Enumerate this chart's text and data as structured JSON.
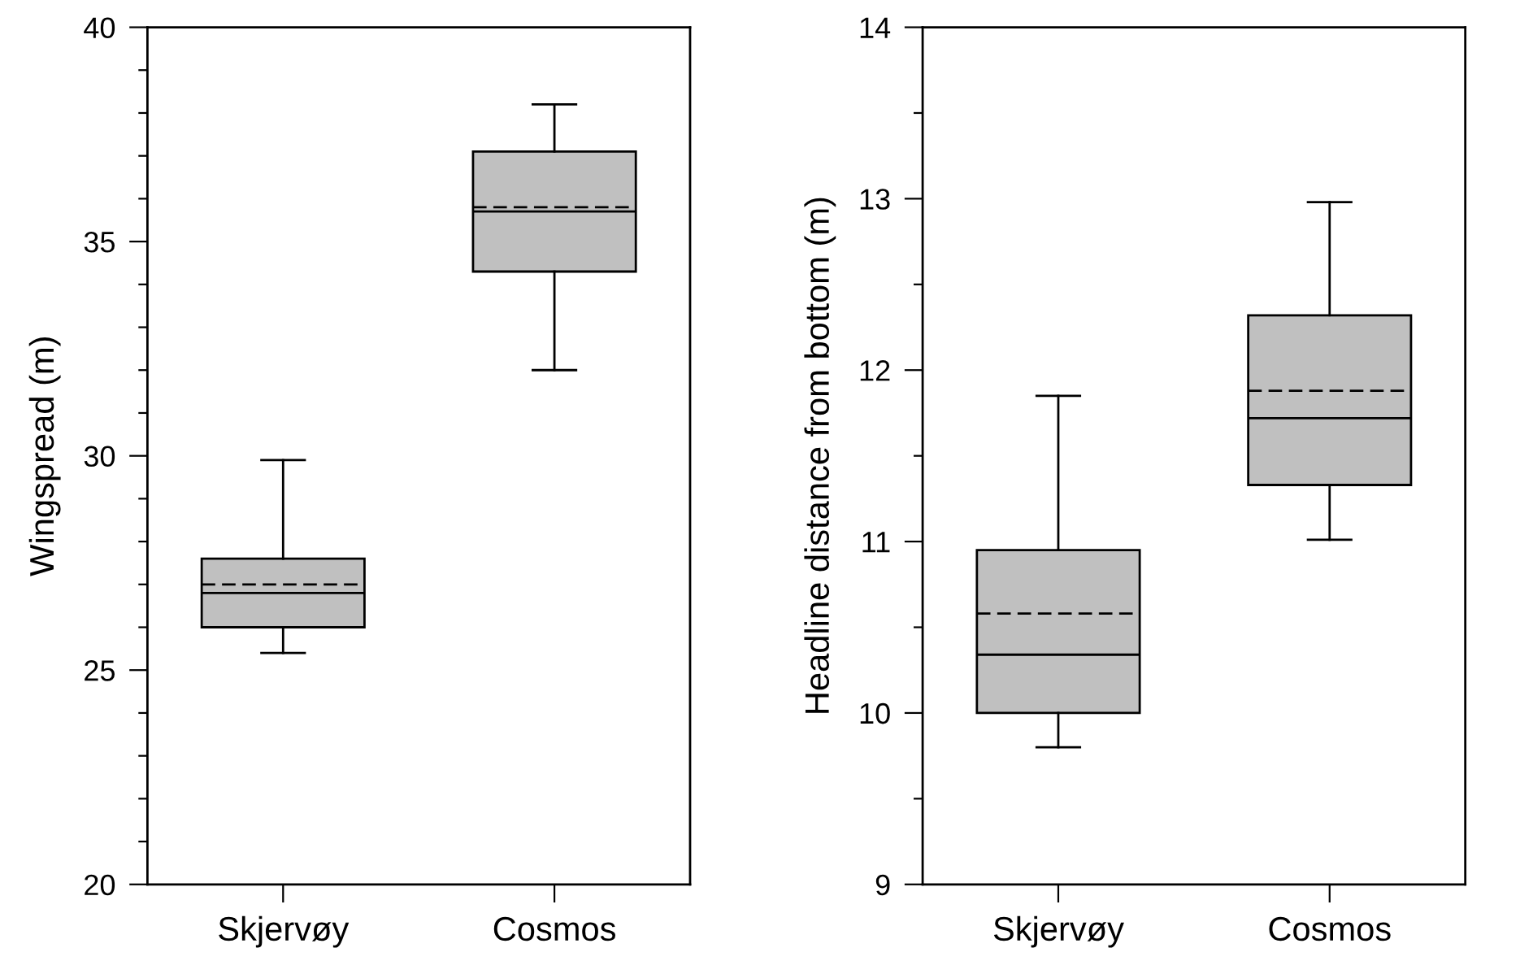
{
  "chart_data": [
    {
      "type": "box",
      "ylabel": "Wingspread (m)",
      "categories": [
        "Skjervøy",
        "Cosmos"
      ],
      "color": "#c0c0c0",
      "ylim": [
        20,
        40
      ],
      "yticks": [
        20,
        {
          "value": 21,
          "label": null
        },
        {
          "value": 22,
          "label": null
        },
        {
          "value": 23,
          "label": null
        },
        {
          "value": 24,
          "label": null
        },
        25,
        {
          "value": 26,
          "label": null
        },
        {
          "value": 27,
          "label": null
        },
        {
          "value": 28,
          "label": null
        },
        {
          "value": 29,
          "label": null
        },
        30,
        {
          "value": 31,
          "label": null
        },
        {
          "value": 32,
          "label": null
        },
        {
          "value": 33,
          "label": null
        },
        {
          "value": 34,
          "label": null
        },
        35,
        {
          "value": 36,
          "label": null
        },
        {
          "value": 37,
          "label": null
        },
        {
          "value": 38,
          "label": null
        },
        {
          "value": 39,
          "label": null
        },
        40
      ],
      "boxes": [
        {
          "low": 25.4,
          "q1": 26.0,
          "median": 26.8,
          "q3": 27.6,
          "high": 29.9,
          "mean": 27.0
        },
        {
          "low": 32.0,
          "q1": 34.3,
          "median": 35.7,
          "q3": 37.1,
          "high": 38.2,
          "mean": 35.8
        }
      ],
      "grid": false
    },
    {
      "type": "box",
      "ylabel": "Headline distance from bottom (m)",
      "categories": [
        "Skjervøy",
        "Cosmos"
      ],
      "color": "#c0c0c0",
      "ylim": [
        9,
        14
      ],
      "yticks": [
        9,
        {
          "value": 9.5,
          "label": null
        },
        10,
        {
          "value": 10.5,
          "label": null
        },
        11,
        {
          "value": 11.5,
          "label": null
        },
        12,
        {
          "value": 12.5,
          "label": null
        },
        13,
        {
          "value": 13.5,
          "label": null
        },
        14
      ],
      "boxes": [
        {
          "low": 9.8,
          "q1": 10.0,
          "median": 10.34,
          "q3": 10.95,
          "high": 11.85,
          "mean": 10.58
        },
        {
          "low": 11.01,
          "q1": 11.33,
          "median": 11.72,
          "q3": 12.32,
          "high": 12.98,
          "mean": 11.88
        }
      ],
      "grid": false
    }
  ]
}
